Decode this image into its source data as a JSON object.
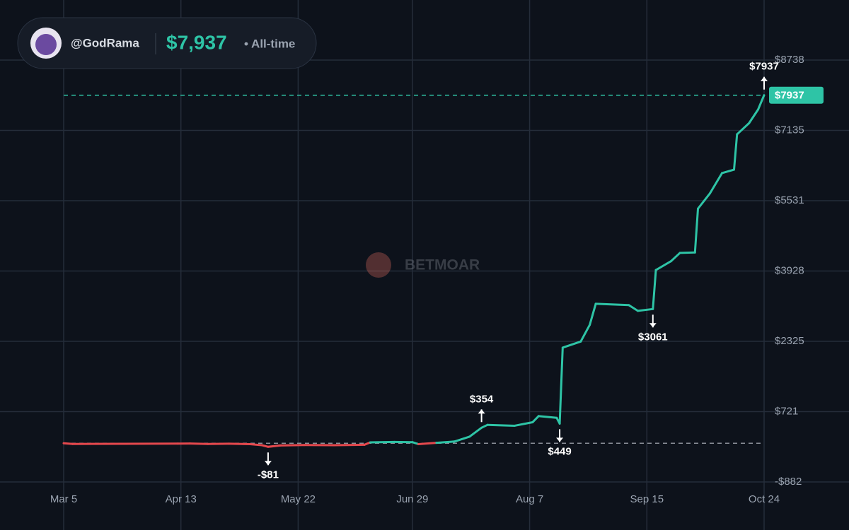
{
  "header": {
    "user": "@GodRama",
    "total": "$7,937",
    "period": "• All-time"
  },
  "watermark": "BETMOAR",
  "chart_data": {
    "type": "line",
    "x": [
      "Mar 5",
      "Mar 8",
      "Mar 25",
      "Apr 12",
      "Apr 16",
      "Apr 22",
      "Apr 29",
      "May 6",
      "May 10",
      "May 12",
      "May 16",
      "May 24",
      "Jun 3",
      "Jun 13",
      "Jun 15",
      "Jun 23",
      "Jun 29",
      "Jul 1",
      "Jul 7",
      "Jul 13",
      "Jul 18",
      "Jul 22",
      "Jul 24",
      "Aug 2",
      "Aug 8",
      "Aug 10",
      "Aug 16",
      "Aug 17",
      "Aug 18",
      "Aug 24",
      "Aug 27",
      "Aug 29",
      "Sep 9",
      "Sep 12",
      "Sep 17",
      "Sep 18",
      "Sep 23",
      "Sep 26",
      "Oct 1",
      "Oct 2",
      "Oct 6",
      "Oct 10",
      "Oct 14",
      "Oct 15",
      "Oct 19",
      "Oct 22",
      "Oct 24"
    ],
    "series": [
      {
        "color": "#2ec4a6",
        "negative_color": "#e5484d",
        "values": [
          0,
          -15,
          -12,
          -8,
          -5,
          -15,
          -10,
          -20,
          -45,
          -81,
          -50,
          -40,
          -45,
          -35,
          20,
          30,
          25,
          -20,
          10,
          40,
          150,
          354,
          420,
          400,
          480,
          620,
          580,
          449,
          2180,
          2320,
          2700,
          3180,
          3150,
          3020,
          3061,
          3950,
          4150,
          4340,
          4350,
          5350,
          5700,
          6160,
          6240,
          7045,
          7300,
          7610,
          7937
        ]
      }
    ],
    "xlim": [
      "Mar 5",
      "Oct 24"
    ],
    "xticks": [
      "Mar 5",
      "Apr 13",
      "May 22",
      "Jun 29",
      "Aug 7",
      "Sep 15",
      "Oct 24"
    ],
    "ylim": [
      -882,
      8738
    ],
    "yticks": [
      {
        "value": -882,
        "label": "-$882"
      },
      {
        "value": 721,
        "label": "$721"
      },
      {
        "value": 2325,
        "label": "$2325"
      },
      {
        "value": 3928,
        "label": "$3928"
      },
      {
        "value": 5531,
        "label": "$5531"
      },
      {
        "value": 7135,
        "label": "$7135"
      },
      {
        "value": 8738,
        "label": "$8738"
      }
    ],
    "grid": true,
    "current": {
      "value": 7937,
      "label": "$7937"
    },
    "annotations": [
      {
        "x": "May 12",
        "value": -81,
        "label": "-$81",
        "direction": "down"
      },
      {
        "x": "Jul 22",
        "value": 354,
        "label": "$354",
        "direction": "up"
      },
      {
        "x": "Aug 17",
        "value": 449,
        "label": "$449",
        "direction": "down"
      },
      {
        "x": "Sep 17",
        "value": 3061,
        "label": "$3061",
        "direction": "down"
      },
      {
        "x": "Oct 24",
        "value": 7937,
        "label": "$7937",
        "direction": "up"
      }
    ]
  }
}
